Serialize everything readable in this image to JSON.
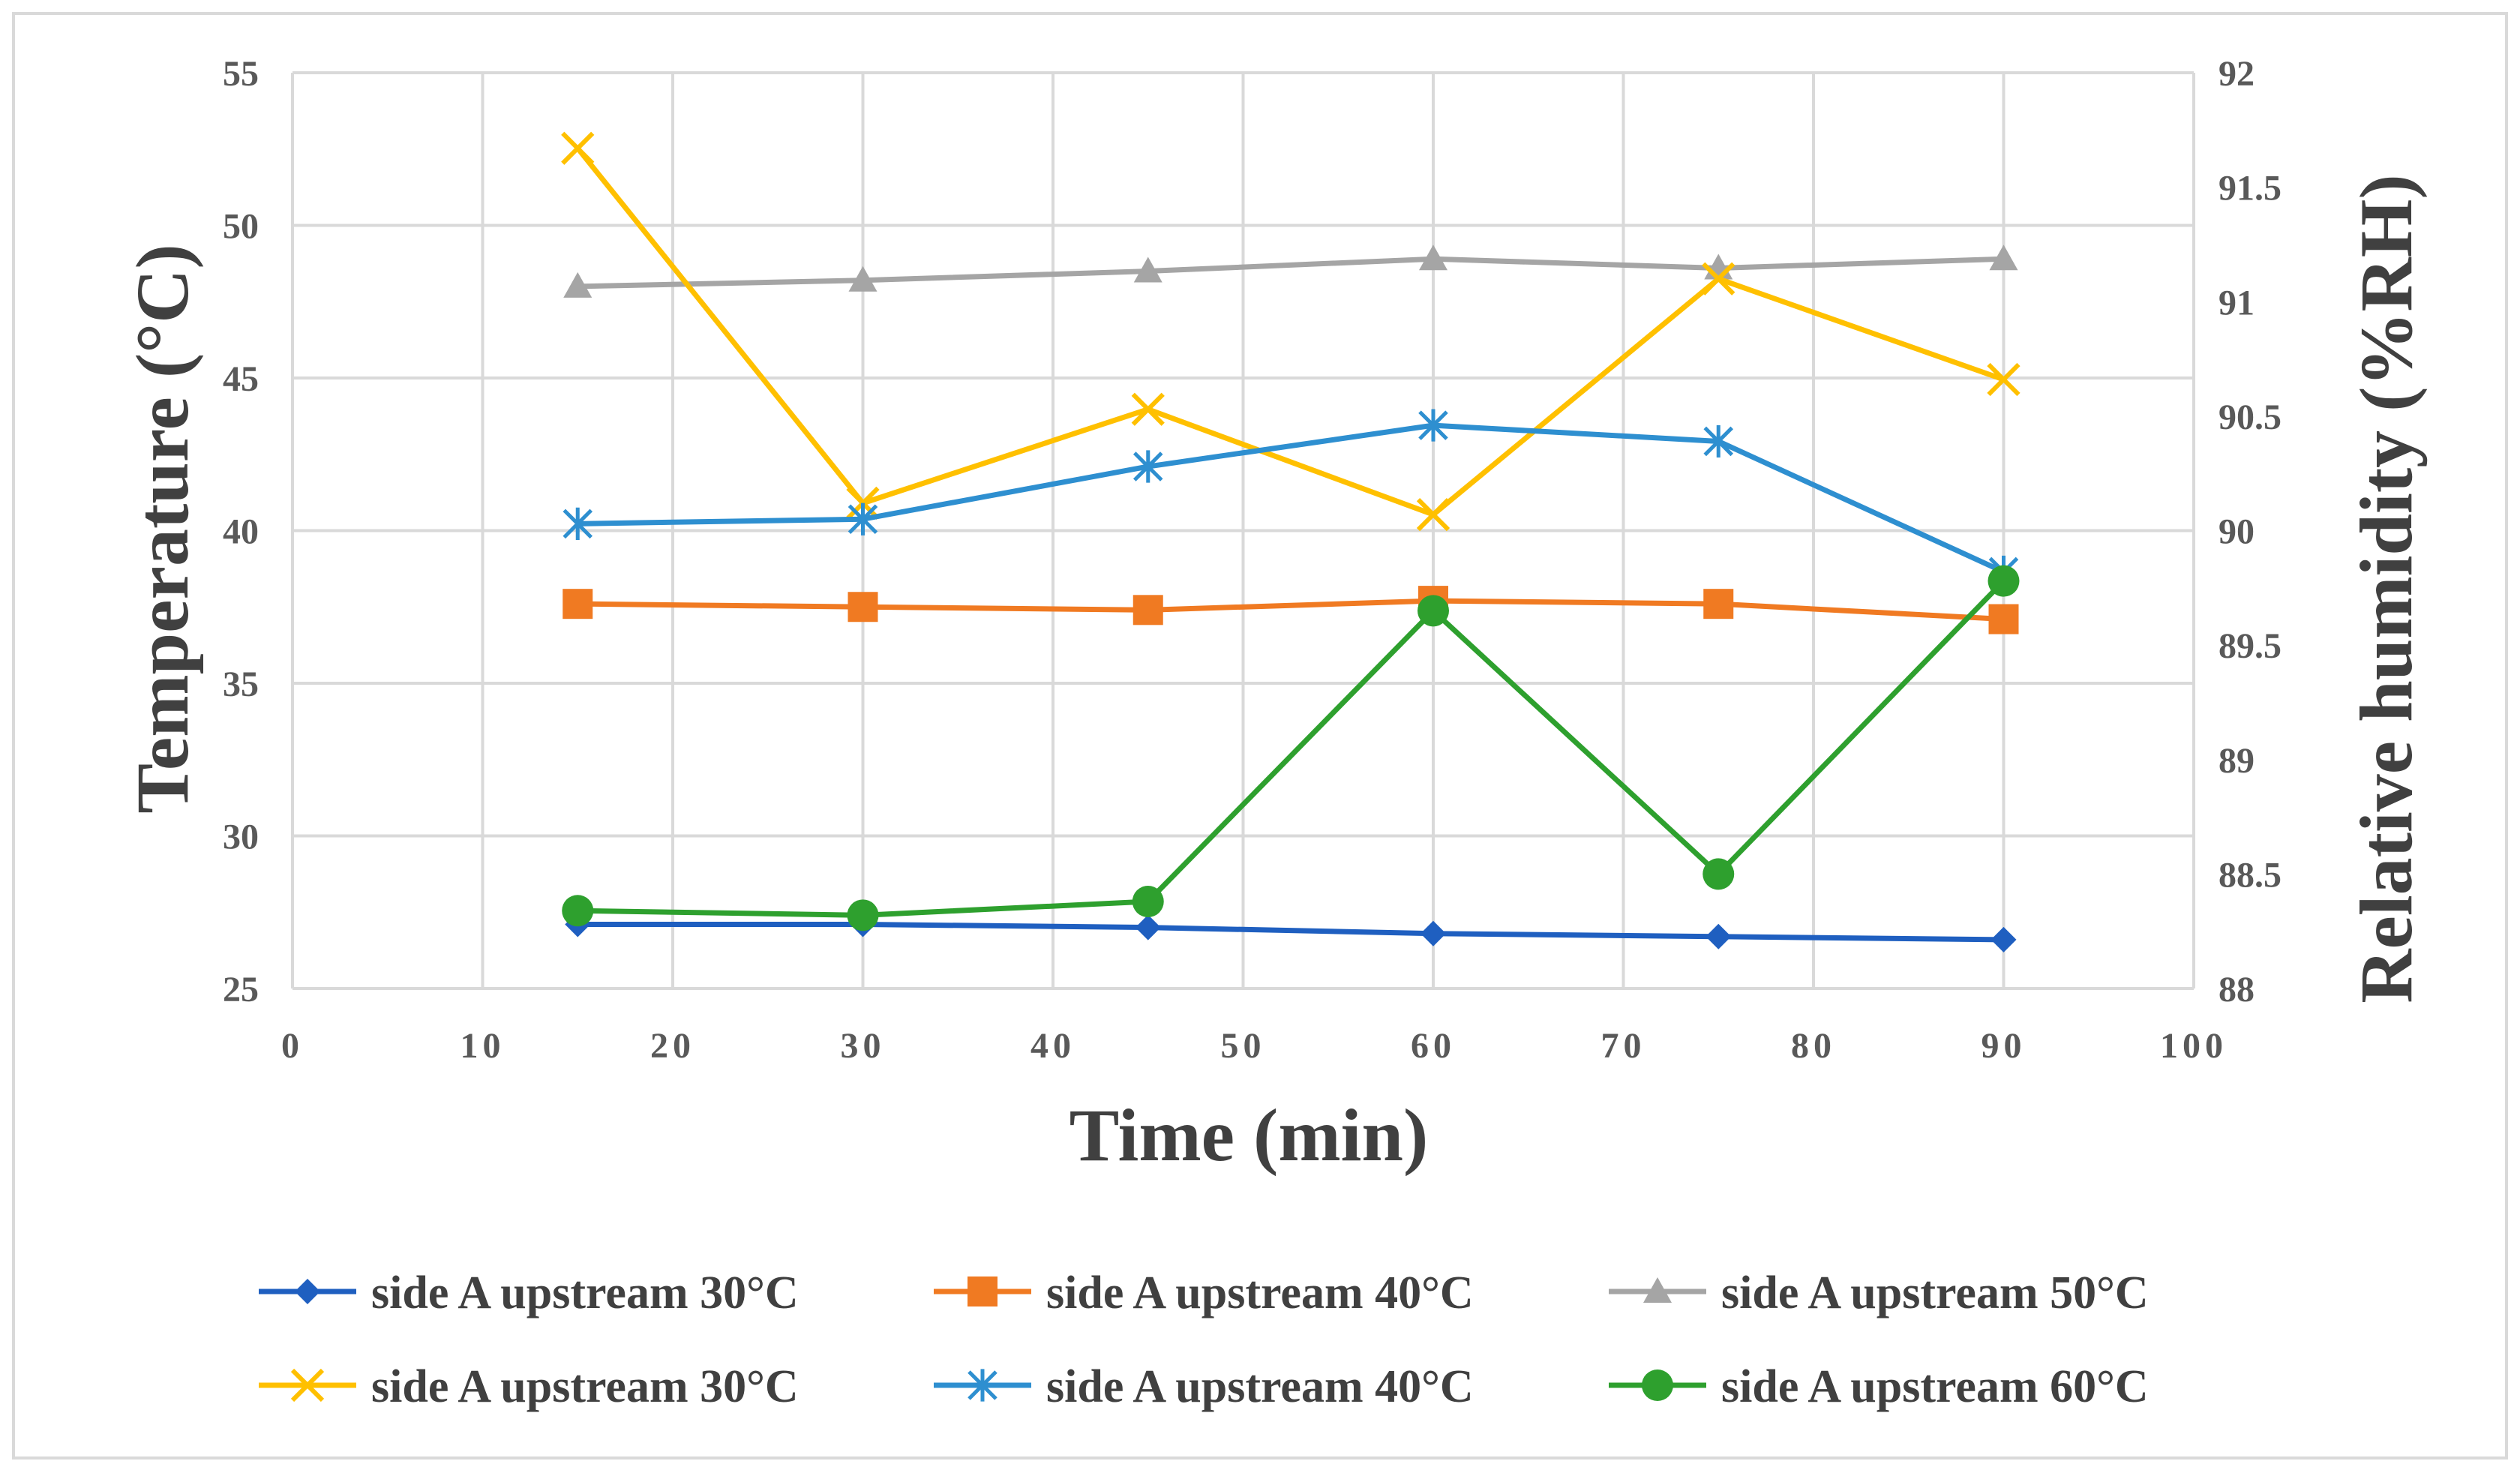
{
  "chart_data": {
    "type": "line",
    "title": "",
    "xlabel": "Time (min)",
    "ylabel_left": "Temperature (°C)",
    "ylabel_right": "Relative humidity (%RH)",
    "xlim": [
      0,
      100
    ],
    "ylim_left": [
      25,
      55
    ],
    "ylim_right": [
      88,
      92
    ],
    "x_ticks": [
      "0",
      "10",
      "20",
      "30",
      "40",
      "50",
      "60",
      "70",
      "80",
      "90",
      "100"
    ],
    "y_left_ticks": [
      "25",
      "30",
      "35",
      "40",
      "45",
      "50",
      "55"
    ],
    "y_right_ticks": [
      "88",
      "88.5",
      "89",
      "89.5",
      "90",
      "90.5",
      "91",
      "91.5",
      "92"
    ],
    "grid": true,
    "legend_position": "bottom",
    "x": [
      15,
      30,
      45,
      60,
      75,
      90
    ],
    "series": [
      {
        "name": "side A upstream 30°C",
        "axis": "left",
        "marker": "diamond",
        "color": "#1F5FC0",
        "values": [
          27.1,
          27.1,
          27.0,
          26.8,
          26.7,
          26.6
        ]
      },
      {
        "name": "side A upstream 40°C",
        "axis": "left",
        "marker": "square",
        "color": "#F07A22",
        "values": [
          37.6,
          37.5,
          37.4,
          37.7,
          37.6,
          37.1
        ]
      },
      {
        "name": "side A upstream 50°C",
        "axis": "left",
        "marker": "triangle",
        "color": "#A5A5A5",
        "values": [
          48.0,
          48.2,
          48.5,
          48.9,
          48.6,
          48.9
        ]
      },
      {
        "name": "side A upstream 30°C",
        "axis": "right",
        "marker": "x",
        "color": "#FFC000",
        "values": [
          91.67,
          90.12,
          90.53,
          90.07,
          91.1,
          90.66
        ]
      },
      {
        "name": "side A upstream 40°C",
        "axis": "right",
        "marker": "star",
        "color": "#2E8FD0",
        "values": [
          90.03,
          90.05,
          90.28,
          90.46,
          90.39,
          89.82
        ]
      },
      {
        "name": "side A upstream 60°C",
        "axis": "right",
        "marker": "circle",
        "color": "#2EA02E",
        "values": [
          88.34,
          88.32,
          88.38,
          89.65,
          88.5,
          89.78
        ]
      }
    ]
  }
}
